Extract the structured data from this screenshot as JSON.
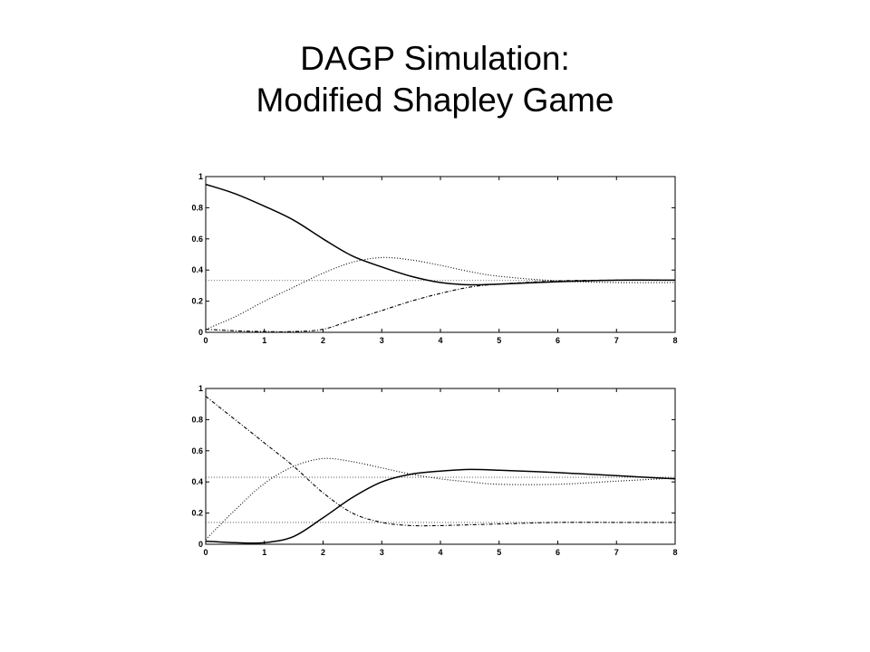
{
  "slide": {
    "title_line1": "DAGP Simulation:",
    "title_line2": "Modified Shapley Game"
  },
  "chart_data": [
    {
      "type": "line",
      "title": "",
      "xlabel": "",
      "ylabel": "",
      "xlim": [
        0,
        8
      ],
      "ylim": [
        0,
        1
      ],
      "xticks": [
        0,
        1,
        2,
        3,
        4,
        5,
        6,
        7,
        8
      ],
      "yticks": [
        0,
        0.2,
        0.4,
        0.6,
        0.8,
        1
      ],
      "grid": false,
      "reference_lines": [
        {
          "y": 0.333,
          "style": "dotted"
        }
      ],
      "series": [
        {
          "style": "solid",
          "x": [
            0,
            0.5,
            1,
            1.5,
            2,
            2.5,
            3,
            3.5,
            4,
            4.5,
            5,
            6,
            7,
            8
          ],
          "y": [
            0.95,
            0.89,
            0.81,
            0.72,
            0.6,
            0.49,
            0.42,
            0.36,
            0.32,
            0.305,
            0.31,
            0.325,
            0.335,
            0.335
          ]
        },
        {
          "style": "dotted",
          "x": [
            0,
            0.5,
            1,
            1.5,
            2,
            2.5,
            3,
            3.5,
            4,
            4.5,
            5,
            6,
            7,
            8
          ],
          "y": [
            0.02,
            0.1,
            0.2,
            0.29,
            0.38,
            0.45,
            0.48,
            0.465,
            0.43,
            0.39,
            0.36,
            0.33,
            0.32,
            0.32
          ]
        },
        {
          "style": "dashdot",
          "x": [
            0,
            0.5,
            1,
            1.5,
            2,
            2.5,
            3,
            3.5,
            4,
            4.5,
            5,
            6,
            7,
            8
          ],
          "y": [
            0.02,
            0.01,
            0.005,
            0.005,
            0.02,
            0.08,
            0.14,
            0.2,
            0.25,
            0.29,
            0.31,
            0.33,
            0.335,
            0.335
          ]
        }
      ]
    },
    {
      "type": "line",
      "title": "",
      "xlabel": "",
      "ylabel": "",
      "xlim": [
        0,
        8
      ],
      "ylim": [
        0,
        1
      ],
      "xticks": [
        0,
        1,
        2,
        3,
        4,
        5,
        6,
        7,
        8
      ],
      "yticks": [
        0,
        0.2,
        0.4,
        0.6,
        0.8,
        1
      ],
      "grid": false,
      "reference_lines": [
        {
          "y": 0.43,
          "style": "dotted"
        },
        {
          "y": 0.14,
          "style": "dotted"
        }
      ],
      "series": [
        {
          "style": "solid",
          "x": [
            0,
            0.5,
            1,
            1.5,
            2,
            2.5,
            3,
            3.5,
            4,
            4.5,
            5,
            6,
            7,
            8
          ],
          "y": [
            0.02,
            0.01,
            0.01,
            0.05,
            0.17,
            0.3,
            0.4,
            0.45,
            0.47,
            0.48,
            0.475,
            0.46,
            0.44,
            0.42
          ]
        },
        {
          "style": "dotted",
          "x": [
            0,
            0.5,
            1,
            1.5,
            2,
            2.5,
            3,
            3.5,
            4,
            4.5,
            5,
            6,
            7,
            8
          ],
          "y": [
            0.03,
            0.22,
            0.39,
            0.5,
            0.55,
            0.53,
            0.49,
            0.45,
            0.42,
            0.4,
            0.385,
            0.385,
            0.405,
            0.425
          ]
        },
        {
          "style": "dashdot",
          "x": [
            0,
            0.5,
            1,
            1.5,
            2,
            2.5,
            3,
            3.5,
            4,
            4.5,
            5,
            6,
            7,
            8
          ],
          "y": [
            0.95,
            0.8,
            0.65,
            0.5,
            0.33,
            0.2,
            0.14,
            0.12,
            0.12,
            0.125,
            0.13,
            0.14,
            0.14,
            0.14
          ]
        }
      ]
    }
  ]
}
